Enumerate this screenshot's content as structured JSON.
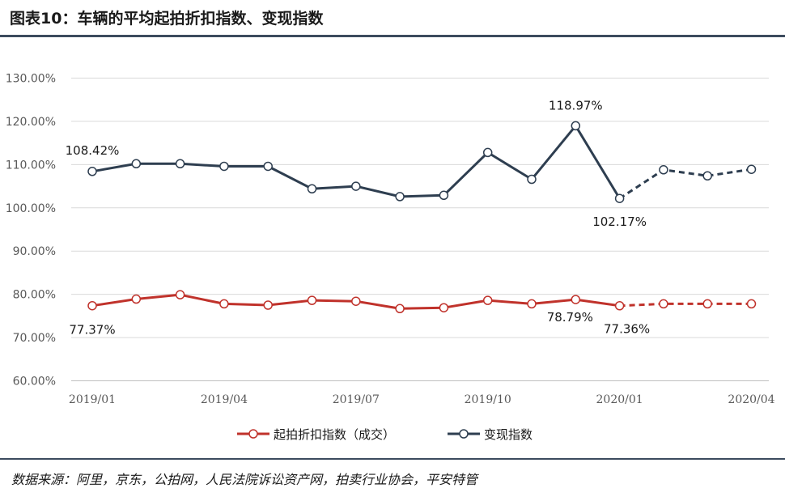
{
  "header": {
    "title": "图表10：车辆的平均起拍折扣指数、变现指数"
  },
  "footer": {
    "source": "数据来源：阿里，京东，公拍网，人民法院诉讼资产网，拍卖行业协会，平安特管"
  },
  "colors": {
    "realization": "#2e3e50",
    "discount": "#c0322b",
    "rule": "#3c4b5e",
    "grid": "#d9d9d9"
  },
  "chart_data": {
    "type": "line",
    "x": [
      "2019/01",
      "2019/02",
      "2019/03",
      "2019/04",
      "2019/05",
      "2019/06",
      "2019/07",
      "2019/08",
      "2019/09",
      "2019/10",
      "2019/11",
      "2019/12",
      "2020/01",
      "2020/02",
      "2020/03",
      "2020/04"
    ],
    "x_tick_labels": [
      "2019/01",
      "2019/04",
      "2019/07",
      "2019/10",
      "2020/01",
      "2020/04"
    ],
    "y_tick_labels": [
      "60.00%",
      "70.00%",
      "80.00%",
      "90.00%",
      "100.00%",
      "110.00%",
      "120.00%",
      "130.00%"
    ],
    "ylim": [
      60,
      130
    ],
    "dashed_from_index": 12,
    "grid": true,
    "legend_position": "bottom",
    "series": [
      {
        "name": "起拍折扣指数（成交）",
        "color": "#c0322b",
        "values": [
          77.37,
          78.9,
          79.9,
          77.8,
          77.5,
          78.6,
          78.4,
          76.7,
          76.9,
          78.6,
          77.8,
          78.79,
          77.36,
          77.8,
          77.8,
          77.8
        ]
      },
      {
        "name": "变现指数",
        "color": "#2e3e50",
        "values": [
          108.42,
          110.2,
          110.2,
          109.6,
          109.6,
          104.4,
          105.0,
          102.6,
          102.9,
          112.8,
          106.6,
          118.97,
          102.17,
          108.8,
          107.4,
          108.9
        ]
      }
    ],
    "annotations": [
      {
        "series": 1,
        "index": 0,
        "text": "108.42%",
        "pos": "above"
      },
      {
        "series": 1,
        "index": 11,
        "text": "118.97%",
        "pos": "above"
      },
      {
        "series": 1,
        "index": 12,
        "text": "102.17%",
        "pos": "below"
      },
      {
        "series": 0,
        "index": 0,
        "text": "77.37%",
        "pos": "below"
      },
      {
        "series": 0,
        "index": 11,
        "text": "78.79%",
        "pos": "below"
      },
      {
        "series": 0,
        "index": 12,
        "text": "77.36%",
        "pos": "below"
      }
    ]
  }
}
